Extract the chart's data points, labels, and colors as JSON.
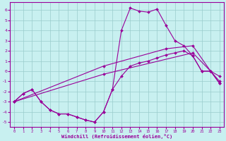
{
  "xlabel": "Windchill (Refroidissement éolien,°C)",
  "bg_color": "#c8f0f0",
  "line_color": "#990099",
  "grid_color": "#99cccc",
  "xlim": [
    -0.5,
    23.5
  ],
  "ylim": [
    -5.5,
    6.8
  ],
  "yticks": [
    -5,
    -4,
    -3,
    -2,
    -1,
    0,
    1,
    2,
    3,
    4,
    5,
    6
  ],
  "xticks": [
    0,
    1,
    2,
    3,
    4,
    5,
    6,
    7,
    8,
    9,
    10,
    11,
    12,
    13,
    14,
    15,
    16,
    17,
    18,
    19,
    20,
    21,
    22,
    23
  ],
  "curves": [
    {
      "x": [
        0,
        1,
        2,
        3,
        4,
        5,
        6,
        7,
        8,
        9,
        10,
        11,
        12,
        13,
        14,
        15,
        16,
        17,
        18,
        19,
        20,
        21,
        22,
        23
      ],
      "y": [
        -3.0,
        -2.2,
        -1.8,
        -3.0,
        -3.8,
        -4.2,
        -4.2,
        -4.5,
        -4.8,
        -5.0,
        -4.0,
        -1.8,
        -0.5,
        0.5,
        0.8,
        1.0,
        1.3,
        1.6,
        1.8,
        2.0,
        1.5,
        0.0,
        0.0,
        -1.2
      ]
    },
    {
      "x": [
        0,
        1,
        2,
        3,
        4,
        5,
        6,
        7,
        8,
        9,
        10,
        11,
        12,
        13,
        14,
        15,
        16,
        17,
        18,
        19,
        20,
        21,
        22,
        23
      ],
      "y": [
        -3.0,
        -2.2,
        -1.8,
        -3.0,
        -3.8,
        -4.2,
        -4.2,
        -4.5,
        -4.8,
        -5.0,
        -4.0,
        -1.8,
        4.0,
        6.2,
        5.9,
        5.8,
        6.1,
        4.5,
        3.0,
        2.5,
        1.5,
        0.0,
        0.0,
        -1.2
      ]
    },
    {
      "x": [
        0,
        10,
        20,
        22,
        23
      ],
      "y": [
        -3.0,
        -0.3,
        1.8,
        0.0,
        -1.0
      ]
    },
    {
      "x": [
        0,
        10,
        17,
        20,
        22,
        23
      ],
      "y": [
        -3.0,
        0.5,
        2.2,
        2.5,
        0.0,
        -0.5
      ]
    }
  ]
}
